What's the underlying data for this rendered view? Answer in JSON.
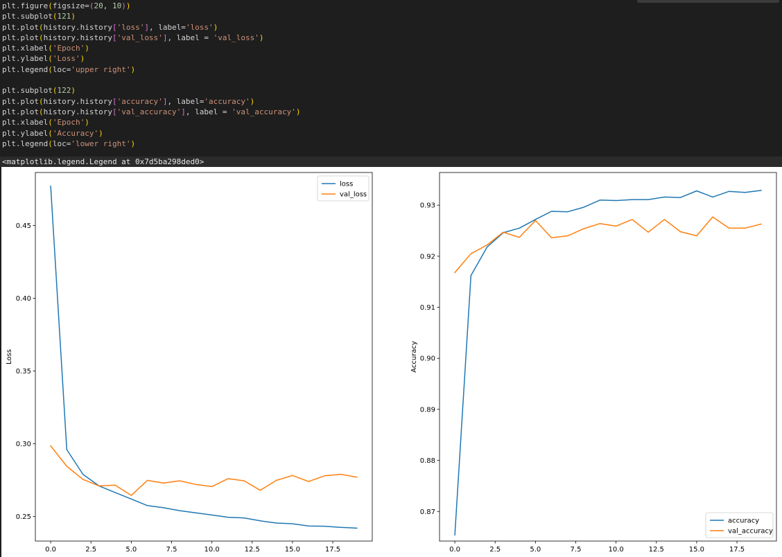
{
  "code_cell": {
    "lines": [
      [
        {
          "t": "plt.figure",
          "c": "default"
        },
        {
          "t": "(",
          "c": "br1"
        },
        {
          "t": "figsize=",
          "c": "default"
        },
        {
          "t": "(",
          "c": "br2"
        },
        {
          "t": "20",
          "c": "num"
        },
        {
          "t": ", ",
          "c": "default"
        },
        {
          "t": "10",
          "c": "num"
        },
        {
          "t": ")",
          "c": "br2"
        },
        {
          "t": ")",
          "c": "br1"
        }
      ],
      [
        {
          "t": "plt.subplot",
          "c": "default"
        },
        {
          "t": "(",
          "c": "br1"
        },
        {
          "t": "121",
          "c": "num"
        },
        {
          "t": ")",
          "c": "br1"
        }
      ],
      [
        {
          "t": "plt.plot",
          "c": "default"
        },
        {
          "t": "(",
          "c": "br1"
        },
        {
          "t": "history.history",
          "c": "default"
        },
        {
          "t": "[",
          "c": "br2"
        },
        {
          "t": "'loss'",
          "c": "str"
        },
        {
          "t": "]",
          "c": "br2"
        },
        {
          "t": ", label=",
          "c": "default"
        },
        {
          "t": "'loss'",
          "c": "str"
        },
        {
          "t": ")",
          "c": "br1"
        }
      ],
      [
        {
          "t": "plt.plot",
          "c": "default"
        },
        {
          "t": "(",
          "c": "br1"
        },
        {
          "t": "history.history",
          "c": "default"
        },
        {
          "t": "[",
          "c": "br2"
        },
        {
          "t": "'val_loss'",
          "c": "str"
        },
        {
          "t": "]",
          "c": "br2"
        },
        {
          "t": ", label = ",
          "c": "default"
        },
        {
          "t": "'val_loss'",
          "c": "str"
        },
        {
          "t": ")",
          "c": "br1"
        }
      ],
      [
        {
          "t": "plt.xlabel",
          "c": "default"
        },
        {
          "t": "(",
          "c": "br1"
        },
        {
          "t": "'Epoch'",
          "c": "str"
        },
        {
          "t": ")",
          "c": "br1"
        }
      ],
      [
        {
          "t": "plt.ylabel",
          "c": "default"
        },
        {
          "t": "(",
          "c": "br1"
        },
        {
          "t": "'Loss'",
          "c": "str"
        },
        {
          "t": ")",
          "c": "br1"
        }
      ],
      [
        {
          "t": "plt.legend",
          "c": "default"
        },
        {
          "t": "(",
          "c": "br1"
        },
        {
          "t": "loc=",
          "c": "default"
        },
        {
          "t": "'upper right'",
          "c": "str"
        },
        {
          "t": ")",
          "c": "br1"
        }
      ],
      [],
      [
        {
          "t": "plt.subplot",
          "c": "default"
        },
        {
          "t": "(",
          "c": "br1"
        },
        {
          "t": "122",
          "c": "num"
        },
        {
          "t": ")",
          "c": "br1"
        }
      ],
      [
        {
          "t": "plt.plot",
          "c": "default"
        },
        {
          "t": "(",
          "c": "br1"
        },
        {
          "t": "history.history",
          "c": "default"
        },
        {
          "t": "[",
          "c": "br2"
        },
        {
          "t": "'accuracy'",
          "c": "str"
        },
        {
          "t": "]",
          "c": "br2"
        },
        {
          "t": ", label=",
          "c": "default"
        },
        {
          "t": "'accuracy'",
          "c": "str"
        },
        {
          "t": ")",
          "c": "br1"
        }
      ],
      [
        {
          "t": "plt.plot",
          "c": "default"
        },
        {
          "t": "(",
          "c": "br1"
        },
        {
          "t": "history.history",
          "c": "default"
        },
        {
          "t": "[",
          "c": "br2"
        },
        {
          "t": "'val_accuracy'",
          "c": "str"
        },
        {
          "t": "]",
          "c": "br2"
        },
        {
          "t": ", label = ",
          "c": "default"
        },
        {
          "t": "'val_accuracy'",
          "c": "str"
        },
        {
          "t": ")",
          "c": "br1"
        }
      ],
      [
        {
          "t": "plt.xlabel",
          "c": "default"
        },
        {
          "t": "(",
          "c": "br1"
        },
        {
          "t": "'Epoch'",
          "c": "str"
        },
        {
          "t": ")",
          "c": "br1"
        }
      ],
      [
        {
          "t": "plt.ylabel",
          "c": "default"
        },
        {
          "t": "(",
          "c": "br1"
        },
        {
          "t": "'Accuracy'",
          "c": "str"
        },
        {
          "t": ")",
          "c": "br1"
        }
      ],
      [
        {
          "t": "plt.legend",
          "c": "default"
        },
        {
          "t": "(",
          "c": "br1"
        },
        {
          "t": "loc=",
          "c": "default"
        },
        {
          "t": "'lower right'",
          "c": "str"
        },
        {
          "t": ")",
          "c": "br1"
        }
      ]
    ]
  },
  "output": {
    "text": "<matplotlib.legend.Legend at 0x7d5ba298ded0>"
  },
  "colors": {
    "series_1": "#1f77b4",
    "series_2": "#ff7f0e"
  },
  "chart_data": [
    {
      "type": "line",
      "title": "",
      "xlabel": "",
      "ylabel": "Loss",
      "xlim": [
        -0.95,
        19.95
      ],
      "ylim": [
        0.2331,
        0.4864
      ],
      "xticks": [
        0.0,
        2.5,
        5.0,
        7.5,
        10.0,
        12.5,
        15.0,
        17.5
      ],
      "xtick_labels": [
        "0.0",
        "2.5",
        "5.0",
        "7.5",
        "10.0",
        "12.5",
        "15.0",
        "17.5"
      ],
      "yticks": [
        0.25,
        0.3,
        0.35,
        0.4,
        0.45
      ],
      "ytick_labels": [
        "0.25",
        "0.30",
        "0.35",
        "0.40",
        "0.45"
      ],
      "grid": false,
      "legend_position": "upper right",
      "x": [
        0,
        1,
        2,
        3,
        4,
        5,
        6,
        7,
        8,
        9,
        10,
        11,
        12,
        13,
        14,
        15,
        16,
        17,
        18,
        19
      ],
      "series": [
        {
          "name": "loss",
          "values": [
            0.477,
            0.296,
            0.279,
            0.271,
            0.2665,
            0.262,
            0.2575,
            0.256,
            0.254,
            0.2525,
            0.251,
            0.2495,
            0.249,
            0.247,
            0.2455,
            0.245,
            0.2435,
            0.2433,
            0.2425,
            0.242
          ]
        },
        {
          "name": "val_loss",
          "values": [
            0.2985,
            0.2845,
            0.2755,
            0.271,
            0.2715,
            0.2645,
            0.2748,
            0.273,
            0.2745,
            0.272,
            0.2705,
            0.276,
            0.2745,
            0.268,
            0.2748,
            0.2782,
            0.274,
            0.278,
            0.279,
            0.277
          ]
        }
      ]
    },
    {
      "type": "line",
      "title": "",
      "xlabel": "",
      "ylabel": "Accuracy",
      "xlim": [
        -0.95,
        19.95
      ],
      "ylim": [
        0.8642,
        0.9364
      ],
      "xticks": [
        0.0,
        2.5,
        5.0,
        7.5,
        10.0,
        12.5,
        15.0,
        17.5
      ],
      "xtick_labels": [
        "0.0",
        "2.5",
        "5.0",
        "7.5",
        "10.0",
        "12.5",
        "15.0",
        "17.5"
      ],
      "yticks": [
        0.87,
        0.88,
        0.89,
        0.9,
        0.91,
        0.92,
        0.93
      ],
      "ytick_labels": [
        "0.87",
        "0.88",
        "0.89",
        "0.90",
        "0.91",
        "0.92",
        "0.93"
      ],
      "grid": false,
      "legend_position": "lower right",
      "x": [
        0,
        1,
        2,
        3,
        4,
        5,
        6,
        7,
        8,
        9,
        10,
        11,
        12,
        13,
        14,
        15,
        16,
        17,
        18,
        19
      ],
      "series": [
        {
          "name": "accuracy",
          "values": [
            0.8654,
            0.9162,
            0.9218,
            0.9246,
            0.9255,
            0.9272,
            0.9288,
            0.9287,
            0.9296,
            0.931,
            0.9309,
            0.9311,
            0.9311,
            0.9316,
            0.9315,
            0.9328,
            0.9316,
            0.9327,
            0.9325,
            0.9329
          ]
        },
        {
          "name": "val_accuracy",
          "values": [
            0.9168,
            0.9205,
            0.9222,
            0.9247,
            0.9237,
            0.927,
            0.9236,
            0.924,
            0.9254,
            0.9264,
            0.9259,
            0.9272,
            0.9247,
            0.9272,
            0.9248,
            0.924,
            0.9277,
            0.9255,
            0.9255,
            0.9263
          ]
        }
      ]
    }
  ]
}
